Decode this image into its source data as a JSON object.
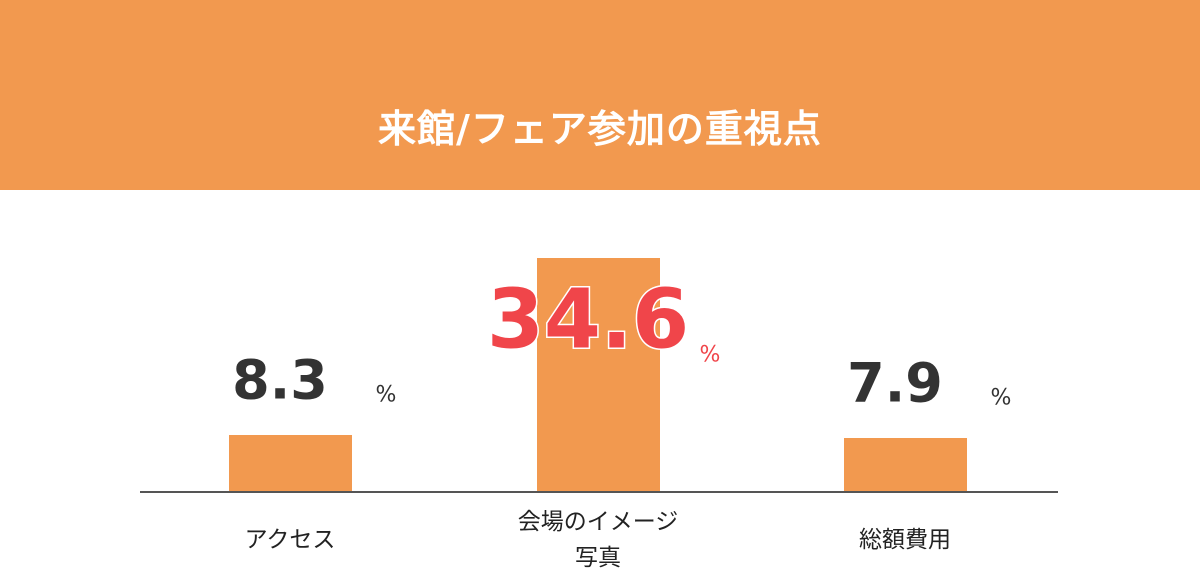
{
  "chart_data": {
    "type": "bar",
    "title": "来館/フェア参加の重視点",
    "categories": [
      "アクセス",
      "会場のイメージ写真",
      "総額費用"
    ],
    "values": [
      8.3,
      34.6,
      7.9
    ],
    "unit": "%",
    "color": "#f2994f",
    "highlight_index": 1,
    "highlight_color": "#f0454a"
  }
}
